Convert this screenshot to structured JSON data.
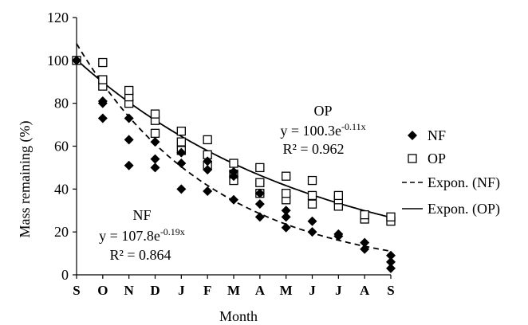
{
  "chart_data": {
    "type": "scatter",
    "xlabel": "Month",
    "ylabel": "Mass remaining (%)",
    "categories": [
      "S",
      "O",
      "N",
      "D",
      "J",
      "F",
      "M",
      "A",
      "M",
      "J",
      "J",
      "A",
      "S"
    ],
    "ylim": [
      0,
      120
    ],
    "y_ticks": [
      "0",
      "20",
      "40",
      "60",
      "80",
      "100",
      "120"
    ],
    "grid": false,
    "legend_position": "right",
    "series": [
      {
        "name": "NF",
        "marker": "filled-diamond",
        "color": "#000000",
        "points": [
          [
            0,
            100
          ],
          [
            1,
            73
          ],
          [
            1,
            80
          ],
          [
            1,
            81
          ],
          [
            2,
            51
          ],
          [
            2,
            63
          ],
          [
            2,
            73
          ],
          [
            3,
            50
          ],
          [
            3,
            54
          ],
          [
            3,
            62
          ],
          [
            4,
            40
          ],
          [
            4,
            52
          ],
          [
            4,
            57
          ],
          [
            5,
            39
          ],
          [
            5,
            49
          ],
          [
            5,
            53
          ],
          [
            6,
            35
          ],
          [
            6,
            46
          ],
          [
            6,
            48
          ],
          [
            7,
            27
          ],
          [
            7,
            33
          ],
          [
            7,
            38
          ],
          [
            8,
            22
          ],
          [
            8,
            27
          ],
          [
            8,
            30
          ],
          [
            9,
            20
          ],
          [
            9,
            25
          ],
          [
            10,
            18
          ],
          [
            10,
            19
          ],
          [
            11,
            12
          ],
          [
            11,
            15
          ],
          [
            12,
            3
          ],
          [
            12,
            6
          ],
          [
            12,
            9
          ]
        ]
      },
      {
        "name": "OP",
        "marker": "open-square",
        "color": "#000000",
        "points": [
          [
            0,
            100
          ],
          [
            1,
            88
          ],
          [
            1,
            91
          ],
          [
            1,
            99
          ],
          [
            2,
            80
          ],
          [
            2,
            83
          ],
          [
            2,
            86
          ],
          [
            3,
            66
          ],
          [
            3,
            72
          ],
          [
            3,
            75
          ],
          [
            4,
            58
          ],
          [
            4,
            62
          ],
          [
            4,
            67
          ],
          [
            5,
            51
          ],
          [
            5,
            56
          ],
          [
            5,
            63
          ],
          [
            6,
            44
          ],
          [
            6,
            47
          ],
          [
            6,
            52
          ],
          [
            7,
            38
          ],
          [
            7,
            43
          ],
          [
            7,
            50
          ],
          [
            8,
            35
          ],
          [
            8,
            38
          ],
          [
            8,
            46
          ],
          [
            9,
            33
          ],
          [
            9,
            37
          ],
          [
            9,
            44
          ],
          [
            10,
            32
          ],
          [
            10,
            35
          ],
          [
            10,
            37
          ],
          [
            11,
            26
          ],
          [
            11,
            28
          ],
          [
            12,
            25
          ],
          [
            12,
            27
          ]
        ]
      },
      {
        "name": "Expon. (NF)",
        "type": "line",
        "style": "dashed",
        "color": "#000000",
        "fit": {
          "a": 107.8,
          "b": -0.19
        }
      },
      {
        "name": "Expon. (OP)",
        "type": "line",
        "style": "solid",
        "color": "#000000",
        "fit": {
          "a": 100.3,
          "b": -0.11
        }
      }
    ],
    "annotations": {
      "op": {
        "label": "OP",
        "eq_base": "y = 100.3e",
        "eq_exp": "-0.11x",
        "r2": "R² = 0.962"
      },
      "nf": {
        "label": "NF",
        "eq_base": "y = 107.8e",
        "eq_exp": "-0.19x",
        "r2": "R² = 0.864"
      }
    }
  }
}
